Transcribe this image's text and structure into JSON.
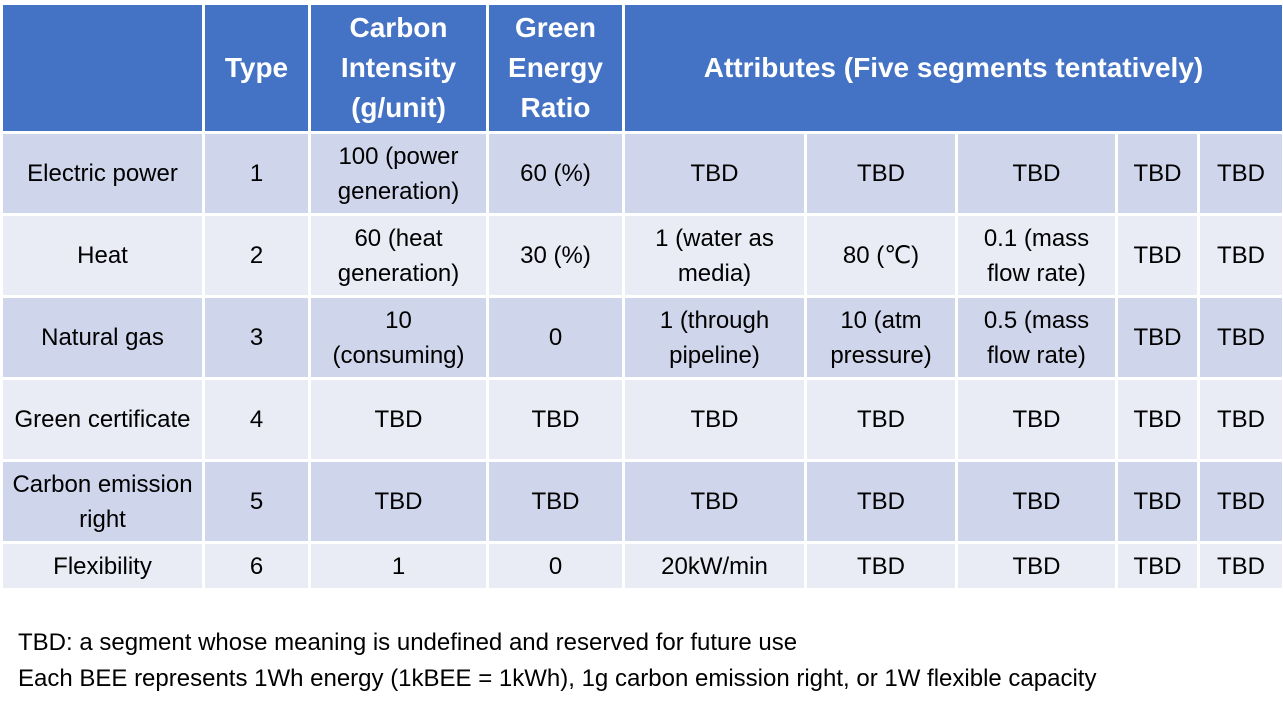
{
  "table": {
    "header": [
      "Type",
      "Carbon Intensity (g/unit)",
      "Green Energy Ratio",
      "Attributes (Five segments tentatively)"
    ],
    "rows": [
      [
        "Electric power",
        "1",
        "100 (power generation)",
        "60 (%)",
        "TBD",
        "TBD",
        "TBD",
        "TBD",
        "TBD"
      ],
      [
        "Heat",
        "2",
        "60 (heat generation)",
        "30 (%)",
        "1 (water as media)",
        "80 (℃)",
        "0.1 (mass flow rate)",
        "TBD",
        "TBD"
      ],
      [
        "Natural gas",
        "3",
        "10 (consuming)",
        "0",
        "1 (through pipeline)",
        "10 (atm pressure)",
        "0.5 (mass flow rate)",
        "TBD",
        "TBD"
      ],
      [
        "Green certificate",
        "4",
        "TBD",
        "TBD",
        "TBD",
        "TBD",
        "TBD",
        "TBD",
        "TBD"
      ],
      [
        "Carbon emission right",
        "5",
        "TBD",
        "TBD",
        "TBD",
        "TBD",
        "TBD",
        "TBD",
        "TBD"
      ],
      [
        "Flexibility",
        "6",
        "1",
        "0",
        "20kW/min",
        "TBD",
        "TBD",
        "TBD",
        "TBD"
      ]
    ]
  },
  "notes": [
    "TBD: a segment whose meaning is undefined and reserved for future use",
    "Each BEE represents 1Wh energy (1kBEE = 1kWh), 1g carbon emission right, or 1W flexible capacity"
  ]
}
